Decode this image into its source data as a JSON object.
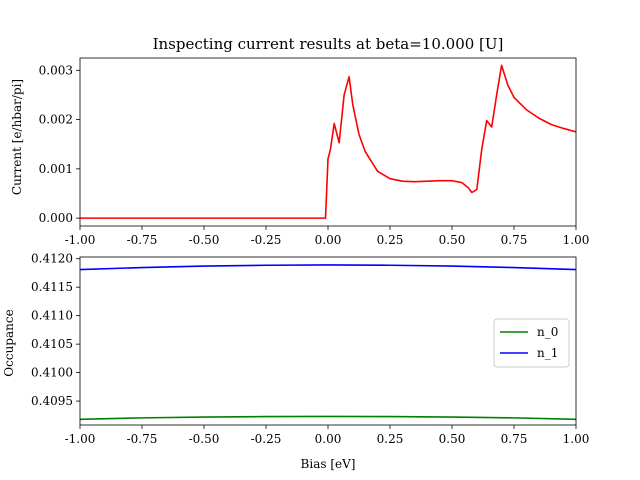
{
  "chart_data": [
    {
      "type": "line",
      "title": "Inspecting current results at beta=10.000 [U]",
      "xlabel": "",
      "ylabel": "Current [e/hbar/pi]",
      "xlim": [
        -1.0,
        1.0
      ],
      "ylim": [
        -0.00016,
        0.00325
      ],
      "xticks": [
        "-1.00",
        "-0.75",
        "-0.50",
        "-0.25",
        "0.00",
        "0.25",
        "0.50",
        "0.75",
        "1.00"
      ],
      "xtick_values": [
        -1.0,
        -0.75,
        -0.5,
        -0.25,
        0.0,
        0.25,
        0.5,
        0.75,
        1.0
      ],
      "yticks": [
        "0.000",
        "0.001",
        "0.002",
        "0.003"
      ],
      "ytick_values": [
        0.0,
        0.001,
        0.002,
        0.003
      ],
      "grid": false,
      "series": [
        {
          "color": "#ff0000",
          "x": [
            -1.0,
            -0.75,
            -0.5,
            -0.25,
            -0.01,
            0.0,
            0.01,
            0.025,
            0.045,
            0.065,
            0.085,
            0.1,
            0.125,
            0.15,
            0.2,
            0.25,
            0.3,
            0.35,
            0.4,
            0.45,
            0.5,
            0.54,
            0.565,
            0.58,
            0.6,
            0.62,
            0.64,
            0.66,
            0.68,
            0.7,
            0.725,
            0.75,
            0.8,
            0.85,
            0.9,
            0.95,
            1.0
          ],
          "y": [
            0.0,
            0.0,
            0.0,
            0.0,
            0.0,
            0.0012,
            0.0014,
            0.00192,
            0.00153,
            0.0025,
            0.00287,
            0.0023,
            0.0017,
            0.00135,
            0.00095,
            0.0008,
            0.00075,
            0.00074,
            0.00075,
            0.00076,
            0.00076,
            0.00072,
            0.00062,
            0.00052,
            0.00058,
            0.0014,
            0.00198,
            0.00185,
            0.0025,
            0.0031,
            0.0027,
            0.00245,
            0.0022,
            0.00203,
            0.0019,
            0.00182,
            0.00175
          ]
        }
      ]
    },
    {
      "type": "line",
      "title": "",
      "xlabel": "Bias [eV]",
      "ylabel": "Occupance",
      "xlim": [
        -1.0,
        1.0
      ],
      "ylim": [
        0.40908,
        0.41203
      ],
      "xticks": [
        "-1.00",
        "-0.75",
        "-0.50",
        "-0.25",
        "0.00",
        "0.25",
        "0.50",
        "0.75",
        "1.00"
      ],
      "xtick_values": [
        -1.0,
        -0.75,
        -0.5,
        -0.25,
        0.0,
        0.25,
        0.5,
        0.75,
        1.0
      ],
      "yticks": [
        "0.4095",
        "0.4100",
        "0.4105",
        "0.4110",
        "0.4115",
        "0.4120"
      ],
      "ytick_values": [
        0.4095,
        0.41,
        0.4105,
        0.411,
        0.4115,
        0.412
      ],
      "grid": false,
      "legend": "center-right",
      "series": [
        {
          "name": "n_0",
          "color": "#008000",
          "x": [
            -1.0,
            -0.75,
            -0.5,
            -0.25,
            0.0,
            0.25,
            0.5,
            0.75,
            1.0
          ],
          "y": [
            0.40918,
            0.409205,
            0.40922,
            0.409228,
            0.40923,
            0.409228,
            0.40922,
            0.409205,
            0.40918
          ]
        },
        {
          "name": "n_1",
          "color": "#0000ff",
          "x": [
            -1.0,
            -0.75,
            -0.5,
            -0.25,
            0.0,
            0.25,
            0.5,
            0.75,
            1.0
          ],
          "y": [
            0.41181,
            0.411845,
            0.41187,
            0.411885,
            0.41189,
            0.411885,
            0.41187,
            0.411845,
            0.41181
          ]
        }
      ]
    }
  ]
}
